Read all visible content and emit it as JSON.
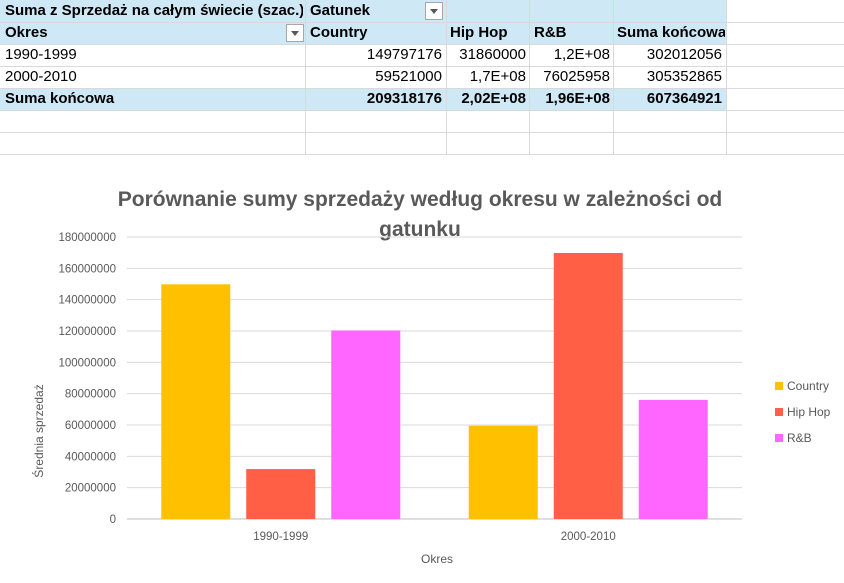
{
  "pivot": {
    "value_field_label": "Suma z Sprzedaż na całym świecie (szac.)",
    "column_field_label": "Gatunek",
    "row_field_label": "Okres",
    "column_headers": [
      "Country",
      "Hip Hop",
      "R&B",
      "Suma końcowa"
    ],
    "rows": [
      {
        "label": "1990-1999",
        "values": [
          "149797176",
          "31860000",
          "1,2E+08",
          "302012056"
        ]
      },
      {
        "label": "2000-2010",
        "values": [
          "59521000",
          "1,7E+08",
          "76025958",
          "305352865"
        ]
      }
    ],
    "total_row": {
      "label": "Suma końcowa",
      "values": [
        "209318176",
        "2,02E+08",
        "1,96E+08",
        "607364921"
      ]
    }
  },
  "colors": {
    "header_band": "#cfe8f6",
    "country": "#ffc000",
    "hip_hop": "#ff5f45",
    "rnb": "#ff66ff",
    "gridline": "#d9d9d9",
    "text_muted": "#595959"
  },
  "chart_data": {
    "type": "bar",
    "title": "Porównanie sumy sprzedaży według okresu w zależności od gatunku",
    "xlabel": "Okres",
    "ylabel": "Średnia sprzedaż",
    "categories": [
      "1990-1999",
      "2000-2010"
    ],
    "series": [
      {
        "name": "Country",
        "values": [
          149797176,
          59521000
        ]
      },
      {
        "name": "Hip Hop",
        "values": [
          31860000,
          169806842
        ]
      },
      {
        "name": "R&B",
        "values": [
          120354880,
          76025958
        ]
      }
    ],
    "ylim": [
      0,
      180000000
    ],
    "yticks": [
      "0",
      "20000000",
      "40000000",
      "60000000",
      "80000000",
      "100000000",
      "120000000",
      "140000000",
      "160000000",
      "180000000"
    ],
    "grid": true,
    "legend_position": "right"
  }
}
